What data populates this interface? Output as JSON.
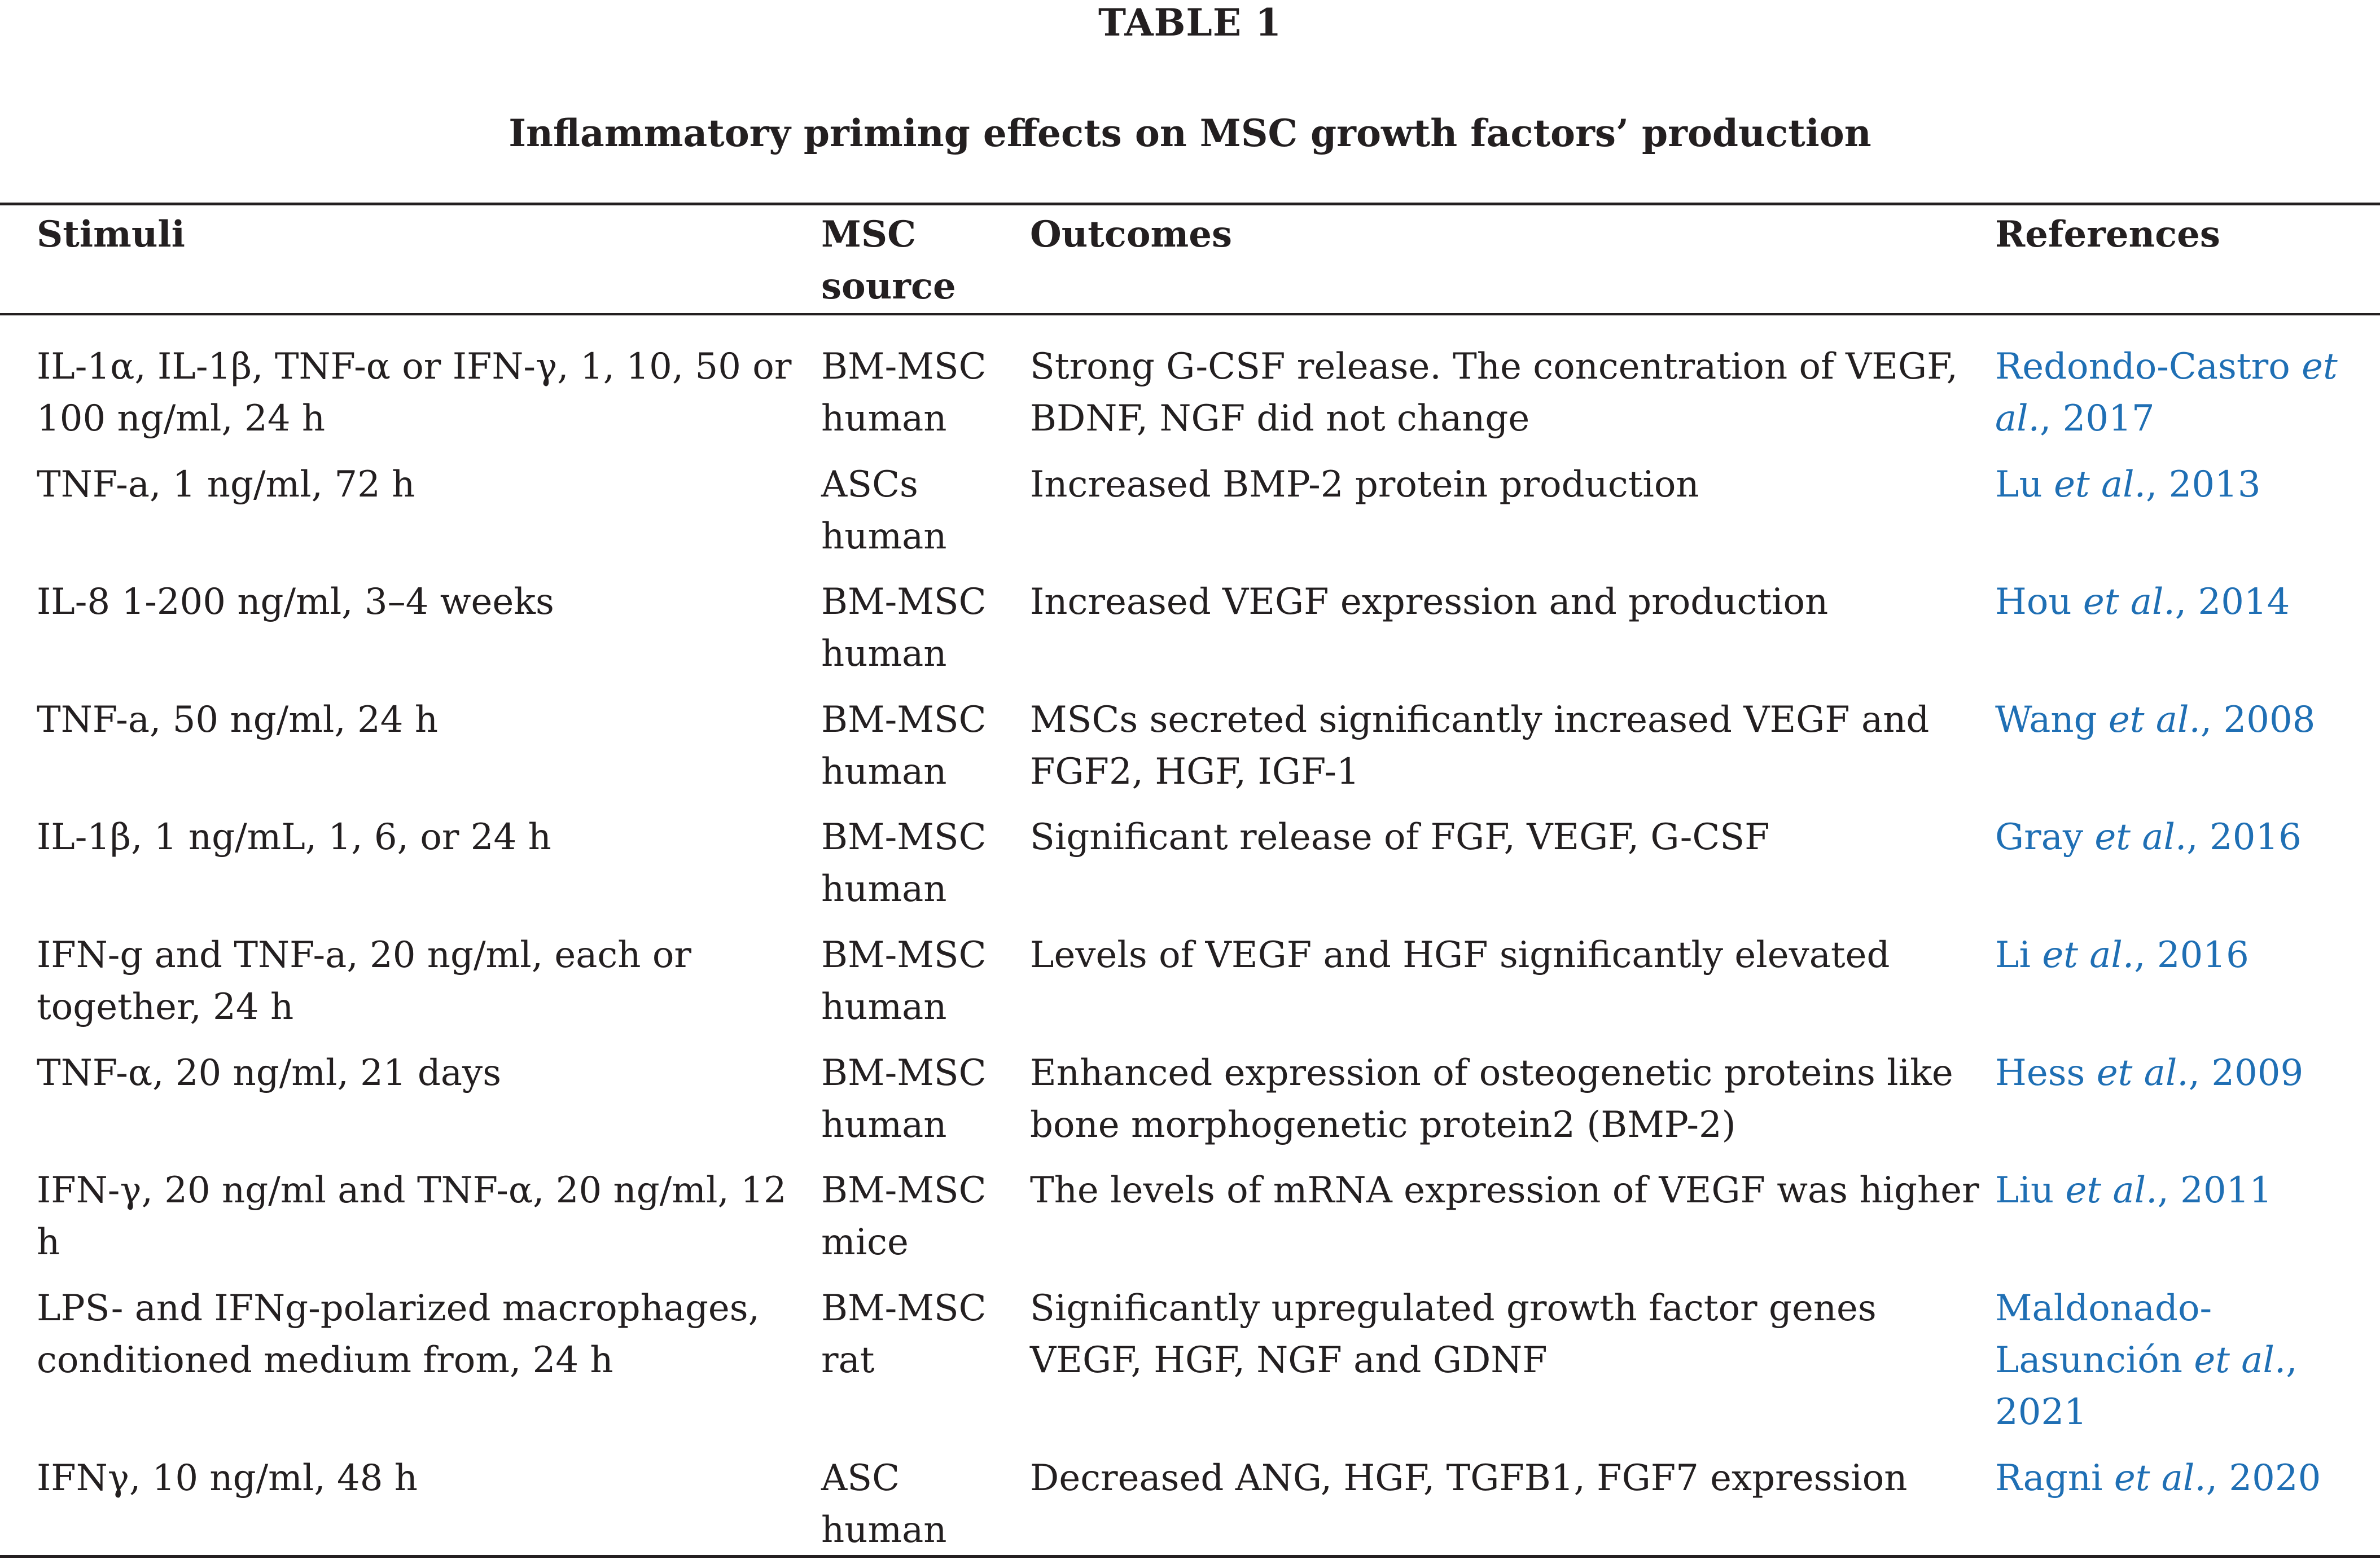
{
  "table": {
    "label": "TABLE 1",
    "caption": "Inflammatory priming effects on MSC growth factors’ production",
    "colors": {
      "text": "#231f20",
      "link": "#1f6fb4"
    },
    "headers": {
      "stimuli": "Stimuli",
      "source": "MSC source",
      "outcomes": "Outcomes",
      "references": "References"
    },
    "rows": [
      {
        "stimuli": "IL-1α, IL-1β, TNF-α or IFN-γ, 1, 10, 50 or 100 ng/ml, 24 h",
        "source": "BM-MSC human",
        "outcomes": "Strong G-CSF release. The concentration of VEGF, BDNF, NGF did not change",
        "ref_author": "Redondo-Castro",
        "ref_etal": "et al.",
        "ref_year": ", 2017"
      },
      {
        "stimuli": "TNF-a, 1 ng/ml, 72 h",
        "source": "ASCs human",
        "outcomes": "Increased BMP-2 protein production",
        "ref_author": "Lu",
        "ref_etal": "et al.",
        "ref_year": ", 2013"
      },
      {
        "stimuli": "IL-8 1-200 ng/ml, 3–4 weeks",
        "source": "BM-MSC human",
        "outcomes": "Increased VEGF expression and production",
        "ref_author": "Hou",
        "ref_etal": "et al.",
        "ref_year": ", 2014"
      },
      {
        "stimuli": "TNF-a, 50 ng/ml, 24 h",
        "source": "BM-MSC human",
        "outcomes": "MSCs secreted significantly increased VEGF and FGF2, HGF, IGF-1",
        "ref_author": "Wang",
        "ref_etal": "et al.",
        "ref_year": ", 2008"
      },
      {
        "stimuli": "IL-1β, 1 ng/mL, 1, 6, or 24 h",
        "source": "BM-MSC human",
        "outcomes": "Significant release of FGF, VEGF, G-CSF",
        "ref_author": "Gray",
        "ref_etal": "et al.",
        "ref_year": ", 2016"
      },
      {
        "stimuli": "IFN-g and TNF-a, 20 ng/ml, each or together, 24 h",
        "source": "BM-MSC human",
        "outcomes": "Levels of VEGF and HGF significantly elevated",
        "ref_author": "Li",
        "ref_etal": "et al.",
        "ref_year": ", 2016"
      },
      {
        "stimuli": "TNF-α, 20 ng/ml, 21 days",
        "source": "BM-MSC human",
        "outcomes": "Enhanced expression of osteogenetic proteins like bone morphogenetic protein2 (BMP-2)",
        "ref_author": "Hess",
        "ref_etal": "et al.",
        "ref_year": ", 2009"
      },
      {
        "stimuli": "IFN-γ, 20 ng/ml and TNF-α, 20 ng/ml, 12 h",
        "source": "BM-MSC mice",
        "outcomes": "The levels of mRNA expression of VEGF was higher",
        "ref_author": "Liu",
        "ref_etal": "et al.",
        "ref_year": ", 2011"
      },
      {
        "stimuli": "LPS- and IFNg-polarized macrophages, conditioned medium from, 24 h",
        "source": "BM-MSC rat",
        "outcomes": "Significantly upregulated growth factor genes VEGF, HGF, NGF and GDNF",
        "ref_author": "Maldonado-Lasunción",
        "ref_etal": "et al.",
        "ref_year": ", 2021"
      },
      {
        "stimuli": "IFNγ, 10 ng/ml, 48 h",
        "source": "ASC human",
        "outcomes": "Decreased ANG, HGF, TGFB1, FGF7 expression",
        "ref_author": "Ragni",
        "ref_etal": "et al.",
        "ref_year": ", 2020"
      }
    ]
  }
}
